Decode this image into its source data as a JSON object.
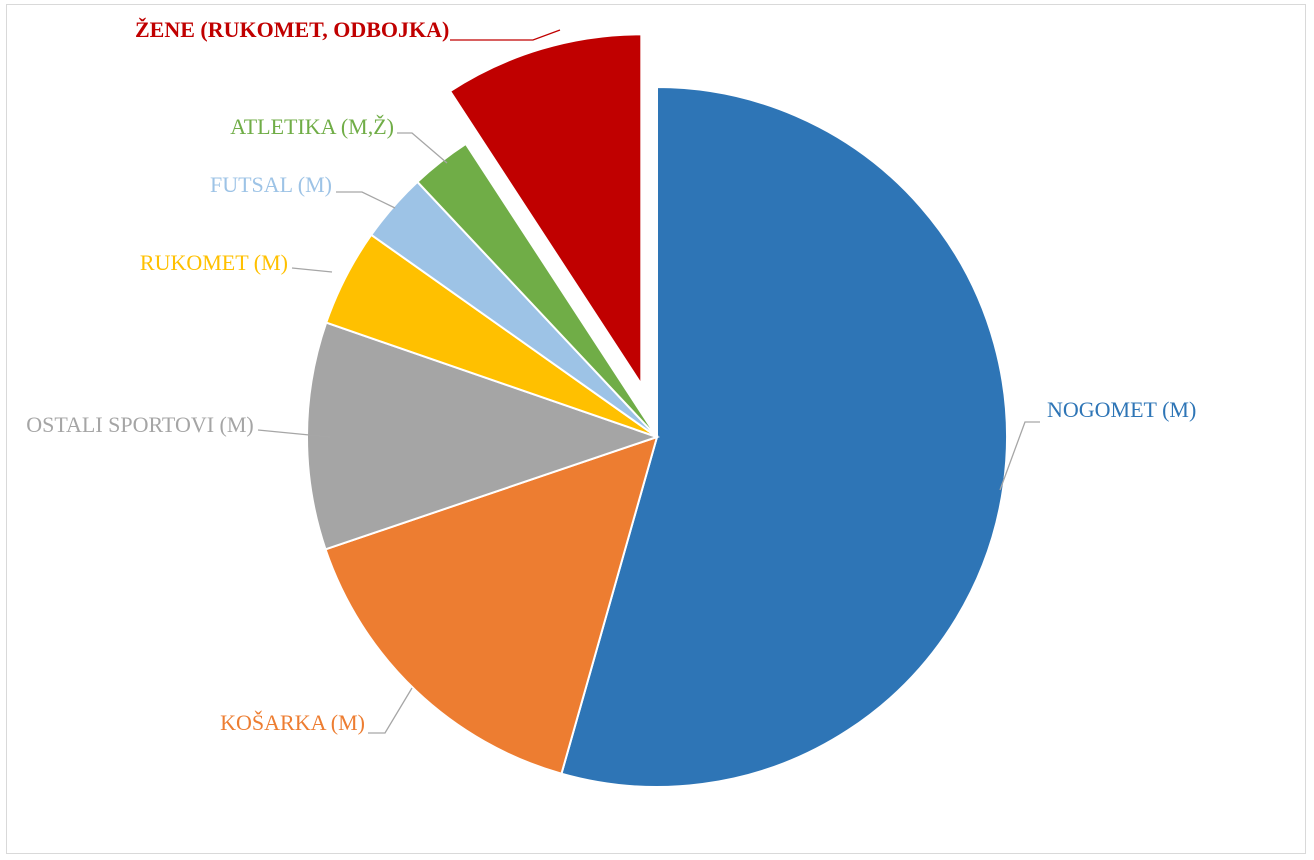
{
  "chart_data": {
    "type": "pie",
    "categories": [
      "NOGOMET (M)",
      "KOŠARKA (M)",
      "OSTALI SPORTOVI (M)",
      "RUKOMET (M)",
      "FUTSAL (M)",
      "ATLETIKA (M,Ž)",
      "ŽENE (RUKOMET, ODBOJKA)"
    ],
    "values": [
      54.4,
      15.4,
      10.5,
      4.5,
      3.2,
      2.8,
      9.2
    ],
    "colors": [
      "#2e75b6",
      "#ed7d31",
      "#a5a5a5",
      "#ffc000",
      "#9dc3e6",
      "#70ad47",
      "#c00000"
    ]
  }
}
